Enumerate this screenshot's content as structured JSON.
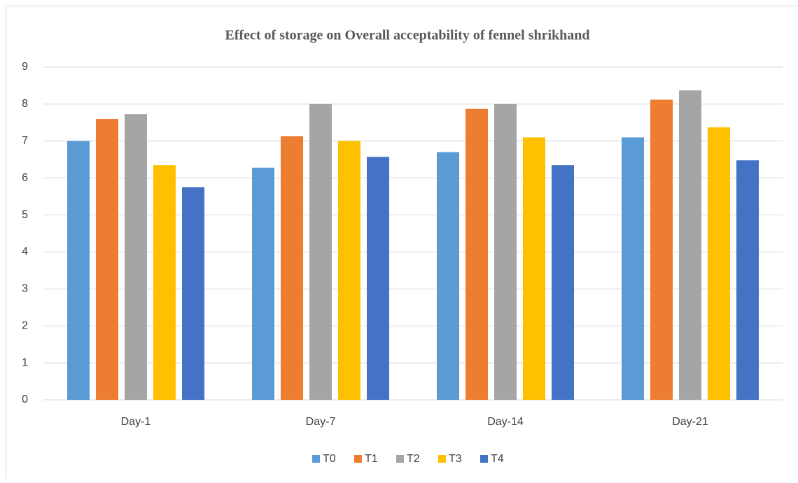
{
  "chart_data": {
    "type": "bar",
    "title": "Effect of storage on Overall acceptability of fennel shrikhand",
    "categories": [
      "Day-1",
      "Day-7",
      "Day-14",
      "Day-21"
    ],
    "series": [
      {
        "name": "T0",
        "color": "#5b9bd5",
        "values": [
          7.0,
          6.28,
          6.7,
          7.1
        ]
      },
      {
        "name": "T1",
        "color": "#ed7d31",
        "values": [
          7.6,
          7.13,
          7.87,
          8.12
        ]
      },
      {
        "name": "T2",
        "color": "#a5a5a5",
        "values": [
          7.73,
          8.0,
          8.0,
          8.37
        ]
      },
      {
        "name": "T3",
        "color": "#ffc000",
        "values": [
          6.35,
          7.0,
          7.1,
          7.37
        ]
      },
      {
        "name": "T4",
        "color": "#4472c4",
        "values": [
          5.75,
          6.57,
          6.35,
          6.48
        ]
      }
    ],
    "ylim": [
      0,
      9
    ],
    "yticks": [
      0,
      1,
      2,
      3,
      4,
      5,
      6,
      7,
      8,
      9
    ],
    "grid": true,
    "legend": "bottom"
  }
}
